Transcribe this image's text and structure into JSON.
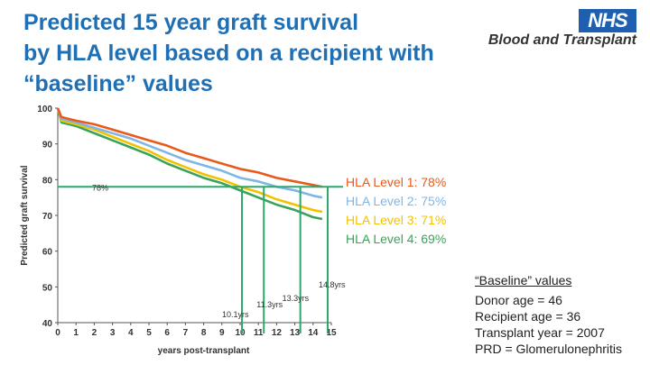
{
  "title": {
    "line1": "Predicted 15 year graft survival",
    "line2": "by HLA level based on a recipient with",
    "line3": "“baseline” values"
  },
  "logo": {
    "brand": "NHS",
    "tagline": "Blood and Transplant",
    "brand_color": "#1f5fb0"
  },
  "legend": [
    {
      "label": "HLA Level 1: 78%",
      "color": "#e8591a"
    },
    {
      "label": "HLA Level 2: 75%",
      "color": "#7fb6e6"
    },
    {
      "label": "HLA Level 3: 71%",
      "color": "#f2c200"
    },
    {
      "label": "HLA Level 4: 69%",
      "color": "#3aa35a"
    }
  ],
  "baseline": {
    "heading": "“Baseline” values",
    "items": [
      "Donor age = 46",
      "Recipient age = 36",
      "Transplant year = 2007",
      "PRD = Glomerulonephritis"
    ]
  },
  "chart_data": {
    "type": "line",
    "title": "",
    "xlabel": "years post-transplant",
    "ylabel": "Predicted graft survival",
    "xlim": [
      0,
      15
    ],
    "ylim": [
      40,
      100
    ],
    "x_ticks": [
      "0",
      "1",
      "2",
      "3",
      "4",
      "5",
      "6",
      "7",
      "8",
      "9",
      "10",
      "11",
      "12",
      "13",
      "14",
      "15"
    ],
    "y_ticks": [
      "40",
      "50",
      "60",
      "70",
      "80",
      "90",
      "100"
    ],
    "x": [
      0,
      0.2,
      1,
      2,
      3,
      4,
      5,
      6,
      7,
      8,
      9,
      10,
      11,
      12,
      13,
      14,
      14.5
    ],
    "series": [
      {
        "name": "HLA Level 1",
        "color": "#e8591a",
        "values": [
          100,
          97.5,
          96.5,
          95.5,
          94,
          92.5,
          91,
          89.5,
          87.5,
          86,
          84.5,
          83,
          82,
          80.5,
          79.5,
          78.5,
          78
        ]
      },
      {
        "name": "HLA Level 2",
        "color": "#7fb6e6",
        "values": [
          100,
          97,
          96,
          94.5,
          93,
          91.5,
          89.5,
          87.5,
          85.5,
          84,
          82.5,
          80.5,
          79.5,
          78,
          77,
          75.5,
          75
        ]
      },
      {
        "name": "HLA Level 3",
        "color": "#f2c200",
        "values": [
          100,
          96.5,
          95.5,
          94,
          92,
          90,
          88,
          85.5,
          83.5,
          81.5,
          80,
          78,
          76.5,
          74.5,
          73,
          71.5,
          71
        ]
      },
      {
        "name": "HLA Level 4",
        "color": "#3aa35a",
        "values": [
          100,
          96,
          95,
          93,
          91,
          89,
          87,
          84.5,
          82.5,
          80.5,
          79,
          77,
          75,
          73,
          71.5,
          69.5,
          69
        ]
      }
    ],
    "reference_line": {
      "y": 78,
      "label": "78%",
      "color": "#2ca86a"
    },
    "drop_lines": [
      {
        "x": 10.1,
        "label": "10.1yrs"
      },
      {
        "x": 11.3,
        "label": "11.3yrs"
      },
      {
        "x": 13.3,
        "label": "13.3yrs"
      },
      {
        "x": 14.8,
        "label": "14.8yrs"
      }
    ]
  }
}
